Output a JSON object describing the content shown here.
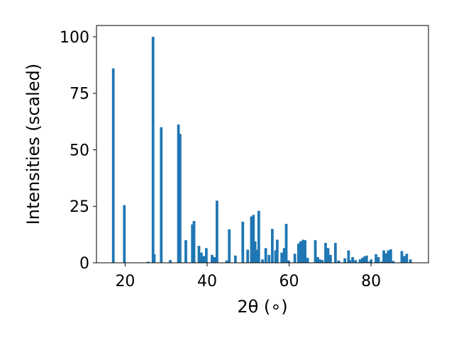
{
  "chart_data": {
    "type": "bar",
    "xlabel": "2θ (∘)",
    "ylabel": "Intensities (scaled)",
    "xlim": [
      13,
      94
    ],
    "ylim": [
      0,
      105
    ],
    "xticks": [
      20,
      40,
      60,
      80
    ],
    "yticks": [
      0,
      25,
      50,
      75,
      100
    ],
    "grid": false,
    "bar_color": "#1f77b4",
    "bar_width_deg": 0.65,
    "x": [
      17.1,
      19.8,
      25.6,
      26.8,
      27.1,
      28.8,
      31.0,
      33.0,
      33.4,
      34.8,
      36.4,
      36.8,
      38.0,
      38.6,
      39.2,
      39.8,
      41.2,
      41.8,
      42.4,
      44.8,
      45.4,
      46.9,
      48.7,
      49.9,
      50.8,
      51.3,
      51.7,
      52.1,
      52.6,
      53.5,
      54.3,
      55.1,
      55.9,
      56.7,
      57.1,
      58.2,
      58.8,
      59.3,
      59.9,
      61.4,
      62.3,
      62.8,
      63.4,
      63.9,
      64.5,
      66.4,
      67.0,
      67.5,
      68.1,
      68.9,
      69.5,
      70.1,
      71.3,
      72.1,
      73.6,
      74.5,
      74.8,
      75.5,
      76.2,
      77.3,
      77.9,
      78.4,
      78.9,
      79.5,
      80.0,
      81.2,
      81.8,
      82.6,
      83.1,
      83.6,
      84.2,
      84.8,
      85.4,
      87.5,
      88.1,
      88.7,
      89.6
    ],
    "values": [
      86,
      25.5,
      0.5,
      100,
      3.8,
      60,
      1.2,
      61.2,
      57,
      10,
      17,
      18.5,
      7.5,
      4.5,
      3,
      6.5,
      3.5,
      2.5,
      27.5,
      1,
      14.8,
      3.2,
      18.2,
      5.8,
      20.5,
      21.2,
      9.5,
      5.8,
      23,
      1.5,
      6.5,
      3.5,
      15,
      5.5,
      10.2,
      4.5,
      6.5,
      17.2,
      1,
      4,
      8.5,
      9.5,
      10.2,
      10,
      2.2,
      10,
      2.5,
      1.5,
      1.2,
      8.8,
      6.5,
      3.5,
      8.8,
      1,
      2,
      5.5,
      1.2,
      2.5,
      1.2,
      1.5,
      2.2,
      2.8,
      3.2,
      0.5,
      1.5,
      3.8,
      2.5,
      0.5,
      5.5,
      4.2,
      5.5,
      6,
      0.8,
      5.2,
      3,
      4,
      1.5
    ]
  }
}
